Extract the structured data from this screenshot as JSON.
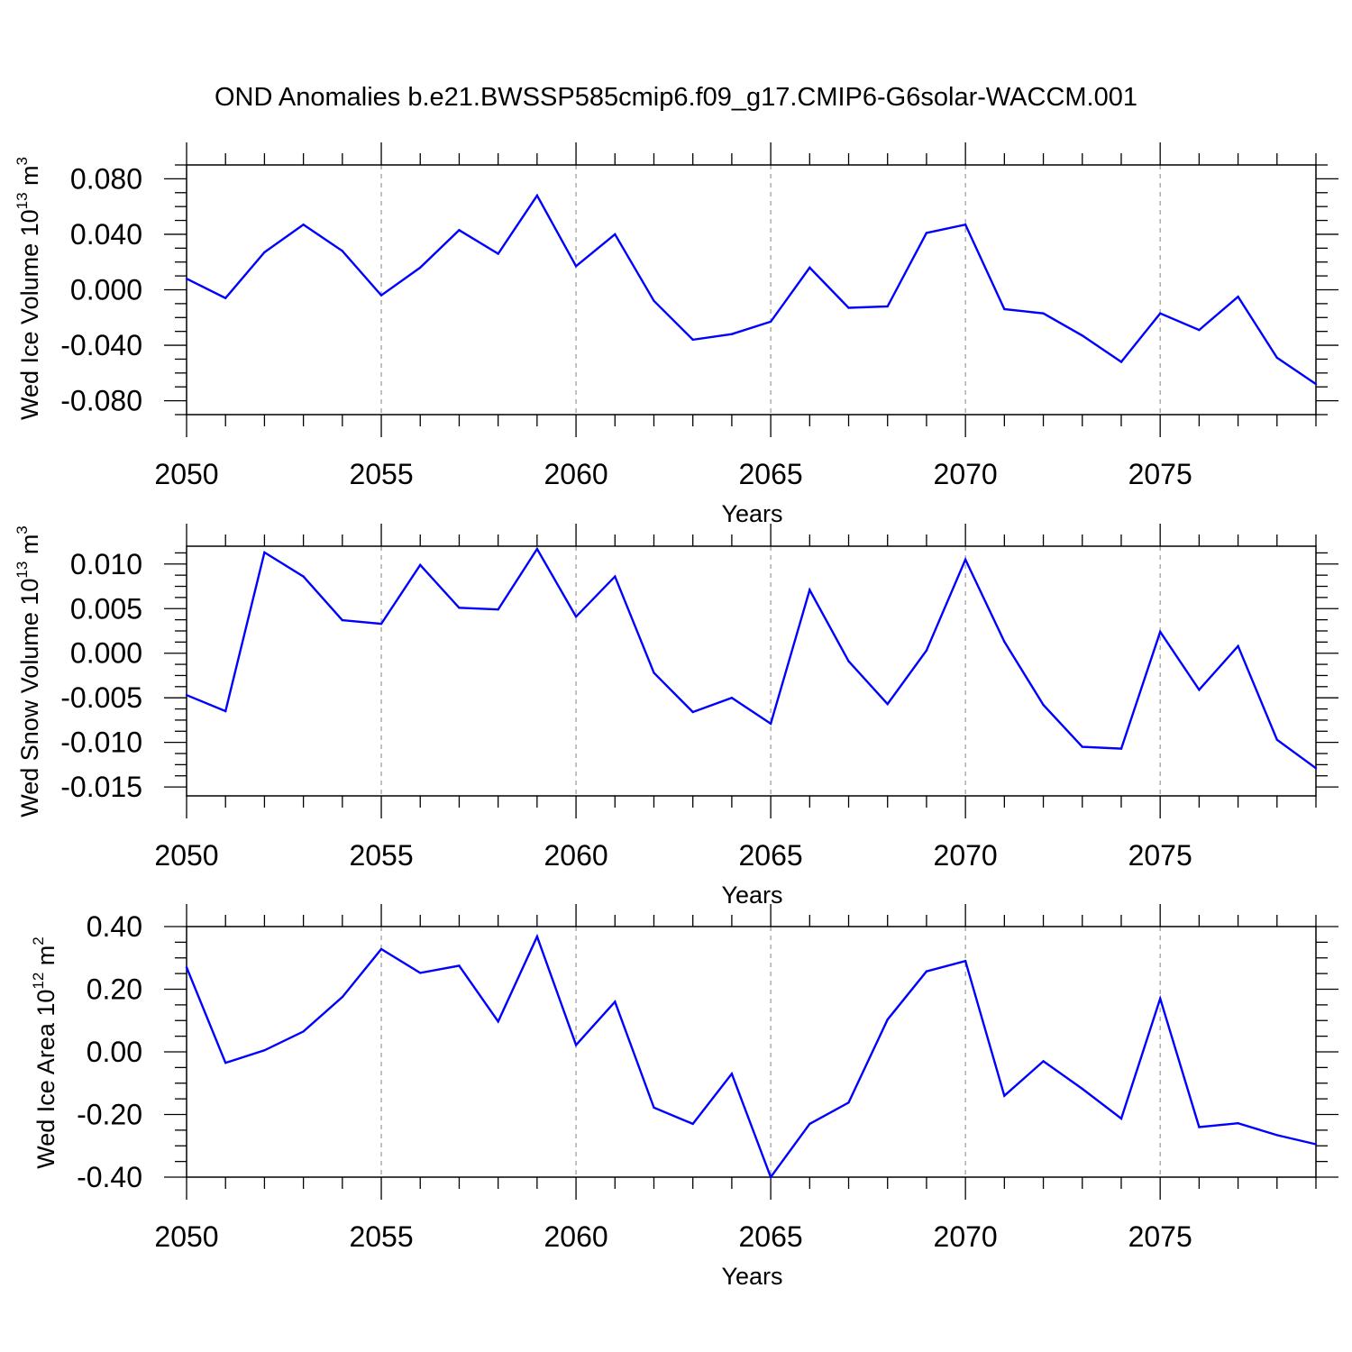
{
  "title": "OND Anomalies b.e21.BWSSP585cmip6.f09_g17.CMIP6-G6solar-WACCM.001",
  "colors": {
    "line": "#0000ff",
    "axis": "#000000",
    "grid": "#999999"
  },
  "chart_data": [
    {
      "type": "line",
      "xlabel": "Years",
      "ylabel_main": "Wed Ice Volume 10",
      "ylabel_exp": "13",
      "ylabel_unit": "m",
      "ylabel_unit_exp": "3",
      "xlim": [
        2050,
        2079
      ],
      "ylim": [
        -0.09,
        0.09
      ],
      "x_ticks": [
        "2050",
        "2055",
        "2060",
        "2065",
        "2070",
        "2075"
      ],
      "y_ticks": [
        "0.080",
        "0.040",
        "0.000",
        "-0.040",
        "-0.080"
      ],
      "y_tick_values": [
        0.08,
        0.04,
        0.0,
        -0.04,
        -0.08
      ],
      "grid_x": [
        2055,
        2060,
        2065,
        2070,
        2075
      ],
      "x": [
        2050,
        2051,
        2052,
        2053,
        2054,
        2055,
        2056,
        2057,
        2058,
        2059,
        2060,
        2061,
        2062,
        2063,
        2064,
        2065,
        2066,
        2067,
        2068,
        2069,
        2070,
        2071,
        2072,
        2073,
        2074,
        2075,
        2076,
        2077,
        2078,
        2079
      ],
      "series": [
        {
          "values": [
            0.008,
            -0.006,
            0.027,
            0.047,
            0.028,
            -0.004,
            0.016,
            0.043,
            0.026,
            0.068,
            0.017,
            0.04,
            -0.008,
            -0.036,
            -0.032,
            -0.023,
            0.016,
            -0.013,
            -0.012,
            0.041,
            0.047,
            -0.014,
            -0.017,
            -0.033,
            -0.052,
            -0.017,
            -0.029,
            -0.005,
            -0.049,
            -0.068
          ]
        }
      ]
    },
    {
      "type": "line",
      "xlabel": "Years",
      "ylabel_main": "Wed Snow Volume 10",
      "ylabel_exp": "13",
      "ylabel_unit": "m",
      "ylabel_unit_exp": "3",
      "xlim": [
        2050,
        2079
      ],
      "ylim": [
        -0.016,
        0.012
      ],
      "x_ticks": [
        "2050",
        "2055",
        "2060",
        "2065",
        "2070",
        "2075"
      ],
      "y_ticks": [
        "0.010",
        "0.005",
        "0.000",
        "-0.005",
        "-0.010",
        "-0.015"
      ],
      "y_tick_values": [
        0.01,
        0.005,
        0.0,
        -0.005,
        -0.01,
        -0.015
      ],
      "grid_x": [
        2055,
        2060,
        2065,
        2070,
        2075
      ],
      "x": [
        2050,
        2051,
        2052,
        2053,
        2054,
        2055,
        2056,
        2057,
        2058,
        2059,
        2060,
        2061,
        2062,
        2063,
        2064,
        2065,
        2066,
        2067,
        2068,
        2069,
        2070,
        2071,
        2072,
        2073,
        2074,
        2075,
        2076,
        2077,
        2078,
        2079
      ],
      "series": [
        {
          "values": [
            -0.0047,
            -0.0065,
            0.0113,
            0.0086,
            0.0037,
            0.0033,
            0.0099,
            0.0051,
            0.0049,
            0.0117,
            0.0041,
            0.0086,
            -0.0022,
            -0.0066,
            -0.005,
            -0.0079,
            0.0071,
            -0.0009,
            -0.0057,
            0.0003,
            0.0105,
            0.0013,
            -0.0058,
            -0.0105,
            -0.0107,
            0.0024,
            -0.0041,
            0.0008,
            -0.0097,
            -0.0129
          ]
        }
      ]
    },
    {
      "type": "line",
      "xlabel": "Years",
      "ylabel_main": "Wed Ice Area 10",
      "ylabel_exp": "12",
      "ylabel_unit": "m",
      "ylabel_unit_exp": "2",
      "xlim": [
        2050,
        2079
      ],
      "ylim": [
        -0.4,
        0.4
      ],
      "x_ticks": [
        "2050",
        "2055",
        "2060",
        "2065",
        "2070",
        "2075"
      ],
      "y_ticks": [
        "0.40",
        "0.20",
        "0.00",
        "-0.20",
        "-0.40"
      ],
      "y_tick_values": [
        0.4,
        0.2,
        0.0,
        -0.2,
        -0.4
      ],
      "grid_x": [
        2055,
        2060,
        2065,
        2070,
        2075
      ],
      "x": [
        2050,
        2051,
        2052,
        2053,
        2054,
        2055,
        2056,
        2057,
        2058,
        2059,
        2060,
        2061,
        2062,
        2063,
        2064,
        2065,
        2066,
        2067,
        2068,
        2069,
        2070,
        2071,
        2072,
        2073,
        2074,
        2075,
        2076,
        2077,
        2078,
        2079
      ],
      "series": [
        {
          "values": [
            0.27,
            -0.035,
            0.005,
            0.065,
            0.175,
            0.328,
            0.252,
            0.275,
            0.097,
            0.368,
            0.022,
            0.16,
            -0.178,
            -0.23,
            -0.07,
            -0.4,
            -0.23,
            -0.162,
            0.103,
            0.257,
            0.29,
            -0.14,
            -0.03,
            -0.118,
            -0.213,
            0.17,
            -0.24,
            -0.228,
            -0.266,
            -0.295
          ]
        }
      ]
    }
  ]
}
